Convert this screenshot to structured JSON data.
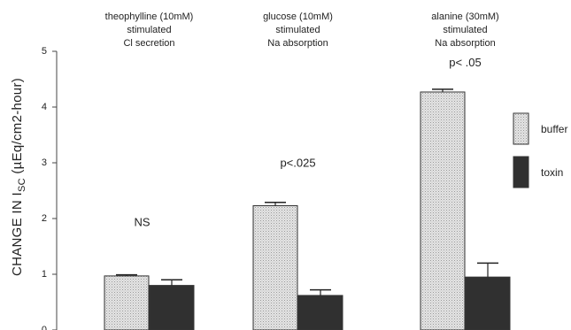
{
  "chart_data": {
    "type": "bar",
    "ylabel_prefix": "CHANGE IN I",
    "ylabel_subscript": "SC",
    "ylabel_suffix": " (µEq/cm2-hour)",
    "ylim": [
      0,
      5
    ],
    "yticks": [
      "0",
      "1",
      "2",
      "3",
      "4",
      "5"
    ],
    "grid": false,
    "legend_position": "right",
    "groups": [
      {
        "label_lines": [
          "theophylline (10mM)",
          "stimulated",
          "Cl secretion"
        ],
        "annotation": "NS"
      },
      {
        "label_lines": [
          "glucose (10mM)",
          "stimulated",
          "Na absorption"
        ],
        "annotation": "p<.025"
      },
      {
        "label_lines": [
          "alanine (30mM)",
          "stimulated",
          "Na absorption"
        ],
        "annotation": "p< .05"
      }
    ],
    "series": [
      {
        "name": "buffer",
        "values": [
          0.97,
          2.23,
          4.27
        ],
        "errors": [
          0.02,
          0.06,
          0.05
        ],
        "color": "#dcdcdc",
        "pattern": "dotted"
      },
      {
        "name": "toxin",
        "values": [
          0.8,
          0.62,
          0.95
        ],
        "errors": [
          0.1,
          0.1,
          0.25
        ],
        "color": "#303030",
        "pattern": "solid"
      }
    ]
  }
}
